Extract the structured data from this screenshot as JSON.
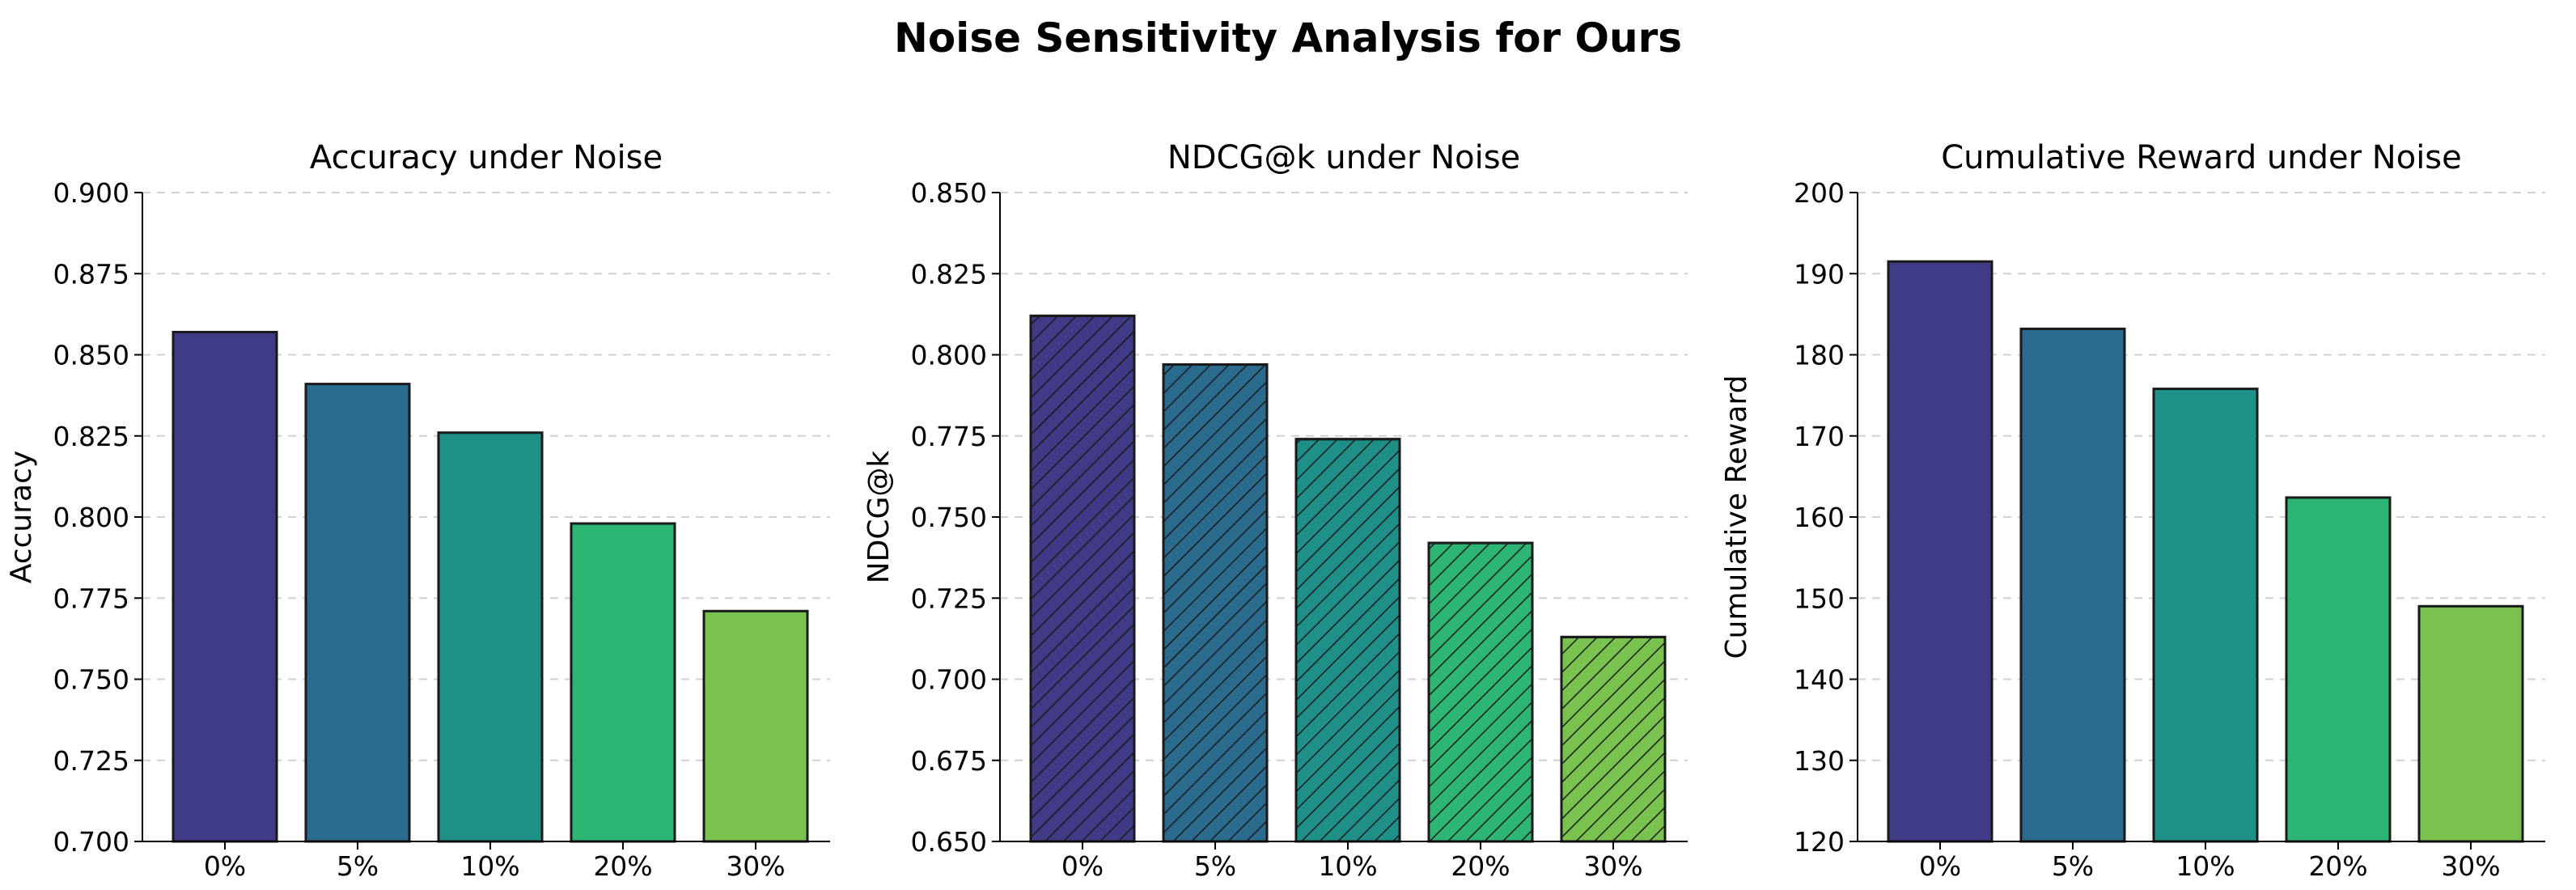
{
  "figure_title": "Noise Sensitivity Analysis for Ours",
  "colors": [
    "#3f3b87",
    "#2b6b8e",
    "#1f9087",
    "#2db673",
    "#7ac24f"
  ],
  "chart_data": [
    {
      "type": "bar",
      "title": "Accuracy under Noise",
      "xlabel": "",
      "ylabel": "Accuracy",
      "categories": [
        "0%",
        "5%",
        "10%",
        "20%",
        "30%"
      ],
      "values": [
        0.857,
        0.841,
        0.826,
        0.798,
        0.771
      ],
      "ylim": [
        0.7,
        0.9
      ],
      "yticks": [
        "0.700",
        "0.725",
        "0.750",
        "0.775",
        "0.800",
        "0.825",
        "0.850",
        "0.875",
        "0.900"
      ],
      "hatch": false,
      "grid": true
    },
    {
      "type": "bar",
      "title": "NDCG@k under Noise",
      "xlabel": "",
      "ylabel": "NDCG@k",
      "categories": [
        "0%",
        "5%",
        "10%",
        "20%",
        "30%"
      ],
      "values": [
        0.812,
        0.797,
        0.774,
        0.742,
        0.713
      ],
      "ylim": [
        0.65,
        0.85
      ],
      "yticks": [
        "0.650",
        "0.675",
        "0.700",
        "0.725",
        "0.750",
        "0.775",
        "0.800",
        "0.825",
        "0.850"
      ],
      "hatch": true,
      "grid": true
    },
    {
      "type": "bar",
      "title": "Cumulative Reward under Noise",
      "xlabel": "",
      "ylabel": "Cumulative Reward",
      "categories": [
        "0%",
        "5%",
        "10%",
        "20%",
        "30%"
      ],
      "values": [
        191.5,
        183.2,
        175.8,
        162.4,
        149.0
      ],
      "ylim": [
        120,
        200
      ],
      "yticks": [
        "120",
        "130",
        "140",
        "150",
        "160",
        "170",
        "180",
        "190",
        "200"
      ],
      "hatch": false,
      "grid": true
    }
  ]
}
